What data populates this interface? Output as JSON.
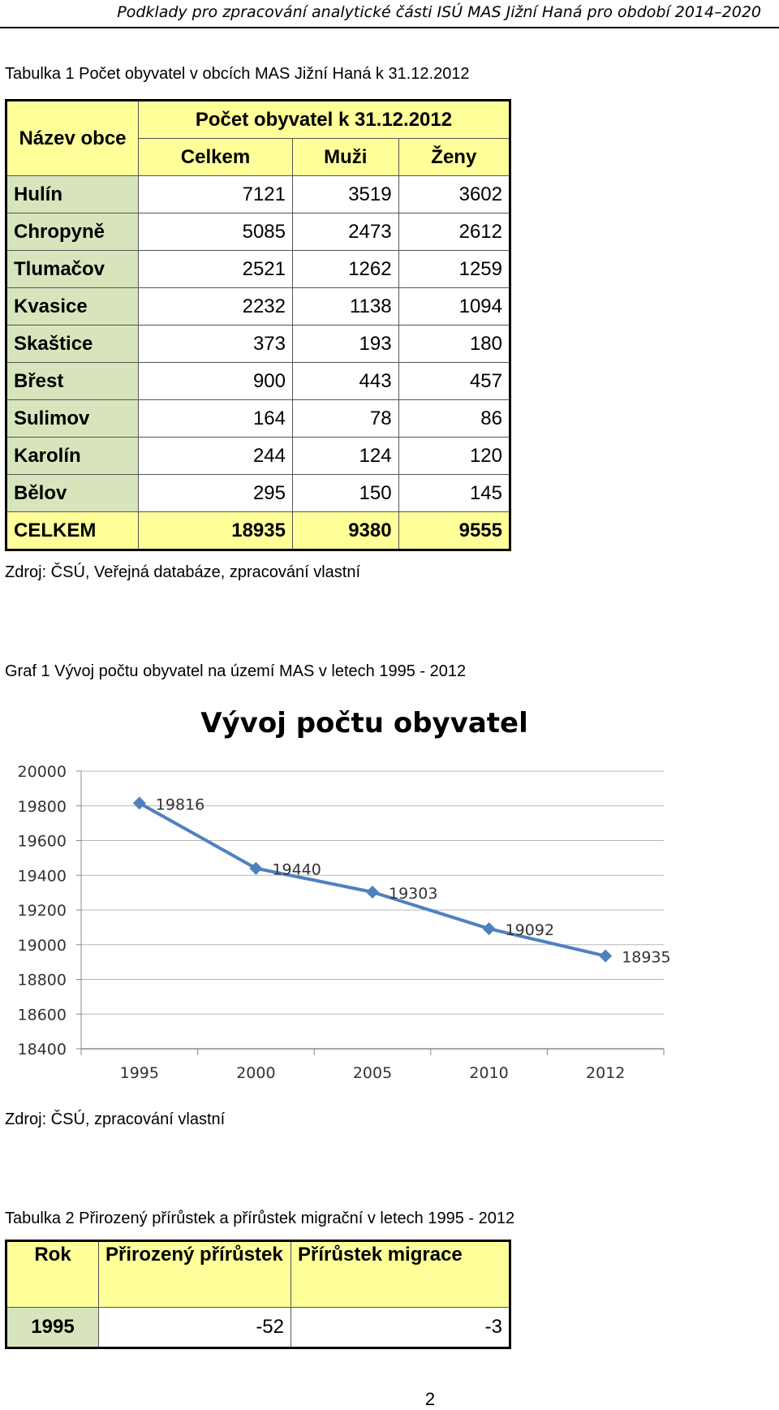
{
  "header": "Podklady pro zpracování analytické části ISÚ MAS Jižní Haná pro období 2014–2020",
  "table1": {
    "caption": "Tabulka 1 Počet obyvatel v obcích MAS Jižní Haná k 31.12.2012",
    "name_header": "Název obce",
    "group_header": "Počet obyvatel k 31.12.2012",
    "col_headers": [
      "Celkem",
      "Muži",
      "Ženy"
    ],
    "rows": [
      {
        "name": "Hulín",
        "celkem": "7121",
        "muzi": "3519",
        "zeny": "3602"
      },
      {
        "name": "Chropyně",
        "celkem": "5085",
        "muzi": "2473",
        "zeny": "2612"
      },
      {
        "name": "Tlumačov",
        "celkem": "2521",
        "muzi": "1262",
        "zeny": "1259"
      },
      {
        "name": "Kvasice",
        "celkem": "2232",
        "muzi": "1138",
        "zeny": "1094"
      },
      {
        "name": "Skaštice",
        "celkem": "373",
        "muzi": "193",
        "zeny": "180"
      },
      {
        "name": "Břest",
        "celkem": "900",
        "muzi": "443",
        "zeny": "457"
      },
      {
        "name": "Sulimov",
        "celkem": "164",
        "muzi": "78",
        "zeny": "86"
      },
      {
        "name": "Karolín",
        "celkem": "244",
        "muzi": "124",
        "zeny": "120"
      },
      {
        "name": "Bělov",
        "celkem": "295",
        "muzi": "150",
        "zeny": "145"
      }
    ],
    "total": {
      "name": "CELKEM",
      "celkem": "18935",
      "muzi": "9380",
      "zeny": "9555"
    },
    "source": "Zdroj: ČSÚ, Veřejná databáze, zpracování vlastní"
  },
  "graph1": {
    "caption": "Graf 1 Vývoj počtu obyvatel na území MAS v letech 1995 - 2012",
    "source": "Zdroj: ČSÚ, zpracování vlastní"
  },
  "chart_data": {
    "type": "line",
    "title": "Vývoj počtu obyvatel",
    "x": [
      "1995",
      "2000",
      "2005",
      "2010",
      "2012"
    ],
    "series": [
      {
        "values": [
          19816,
          19440,
          19303,
          19092,
          18935
        ]
      }
    ],
    "ylim": [
      18400,
      20000
    ],
    "yticks": [
      18400,
      18600,
      18800,
      19000,
      19200,
      19400,
      19600,
      19800,
      20000
    ],
    "data_labels": true,
    "grid": true,
    "legend": "none",
    "line_color": "#4f81bd"
  },
  "table2": {
    "caption": "Tabulka 2 Přirozený přírůstek a přírůstek migrační v letech 1995 - 2012",
    "headers": [
      "Rok",
      "Přirozený přírůstek",
      "Přírůstek migrace"
    ],
    "rows": [
      {
        "rok": "1995",
        "prirozeny": "-52",
        "migrace": "-3"
      }
    ]
  },
  "page_number": "2"
}
